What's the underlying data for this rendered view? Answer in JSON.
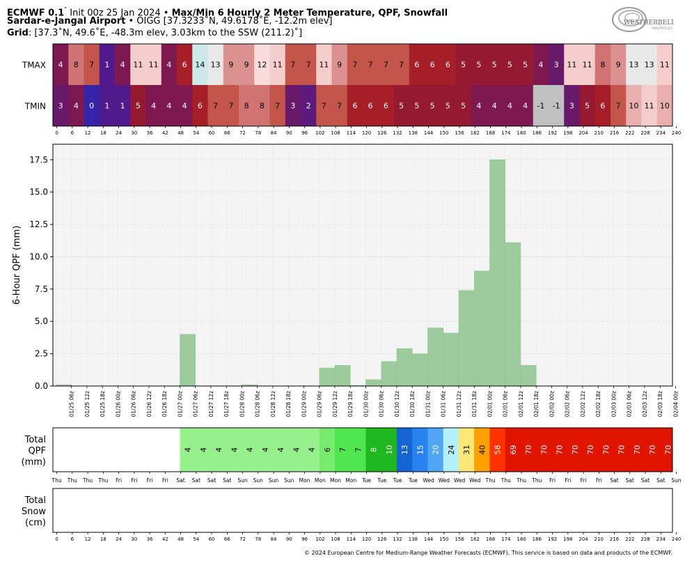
{
  "header": {
    "line1_model": "ECMWF 0.1",
    "line1_init": "Init 00z 25 Jan 2024",
    "line1_title": "Max/Min 6 Hourly 2 Meter Temperature,  QPF,  Snowfall",
    "line2_station": "Sardar-e-Jangal Airport",
    "line2_detail": "OIGG [37.3233˚N, 49.6178˚E, -12.2m elev]",
    "line3_label": "Grid",
    "line3_detail": ": [37.3˚N, 49.6˚E, -48.3m elev, 3.03km to the SSW (211.2)˚]"
  },
  "logo": {
    "text": "WEATHERBELL",
    "sub": "ANALYTICS LLC"
  },
  "temp_panel": {
    "row_labels": [
      "TMAX",
      "TMIN"
    ],
    "tmax": [
      4,
      8,
      7,
      1,
      4,
      11,
      11,
      4,
      6,
      14,
      13,
      9,
      9,
      12,
      11,
      7,
      7,
      11,
      9,
      7,
      7,
      7,
      7,
      6,
      6,
      6,
      5,
      5,
      5,
      5,
      5,
      4,
      3,
      11,
      11,
      8,
      9,
      13,
      13,
      11
    ],
    "tmin": [
      3,
      4,
      0,
      1,
      1,
      5,
      4,
      4,
      4,
      6,
      7,
      7,
      8,
      8,
      7,
      3,
      2,
      7,
      7,
      6,
      6,
      6,
      5,
      5,
      5,
      5,
      5,
      4,
      4,
      4,
      4,
      -1,
      -1,
      3,
      5,
      6,
      7,
      10,
      11,
      10
    ],
    "hours": [
      "0",
      "6",
      "12",
      "18",
      "24",
      "30",
      "36",
      "42",
      "48",
      "54",
      "60",
      "66",
      "72",
      "78",
      "84",
      "90",
      "96",
      "102",
      "108",
      "114",
      "120",
      "126",
      "132",
      "138",
      "144",
      "150",
      "156",
      "162",
      "168",
      "174",
      "180",
      "186",
      "192",
      "198",
      "204",
      "210",
      "216",
      "222",
      "228",
      "234",
      "240"
    ]
  },
  "chart_data": {
    "type": "bar",
    "ylabel": "6-Hour QPF (mm)",
    "ylim": [
      0,
      18.7
    ],
    "yticks": [
      "0.0",
      "2.5",
      "5.0",
      "7.5",
      "10.0",
      "12.5",
      "15.0",
      "17.5"
    ],
    "grid": true,
    "bar_color": "#9ecb9e",
    "categories": [
      "01/25 06z",
      "01/25 12z",
      "01/25 18z",
      "01/26 00z",
      "01/26 06z",
      "01/26 12z",
      "01/26 18z",
      "01/27 00z",
      "01/27 06z",
      "01/27 12z",
      "01/27 18z",
      "01/28 00z",
      "01/28 06z",
      "01/28 12z",
      "01/28 18z",
      "01/29 00z",
      "01/29 06z",
      "01/29 12z",
      "01/29 18z",
      "01/30 00z",
      "01/30 06z",
      "01/30 12z",
      "01/30 18z",
      "01/31 00z",
      "01/31 06z",
      "01/31 12z",
      "01/31 18z",
      "02/01 00z",
      "02/01 06z",
      "02/01 12z",
      "02/01 18z",
      "02/02 00z",
      "02/02 06z",
      "02/02 12z",
      "02/02 18z",
      "02/03 00z",
      "02/03 06z",
      "02/03 12z",
      "02/03 18z",
      "02/04 00z"
    ],
    "values": [
      0.1,
      0,
      0,
      0,
      0,
      0,
      0,
      0,
      4.0,
      0,
      0,
      0,
      0.1,
      0,
      0,
      0,
      0,
      1.4,
      1.6,
      0.05,
      0.5,
      1.9,
      2.9,
      2.5,
      4.5,
      4.1,
      7.4,
      8.9,
      17.5,
      11.1,
      1.6,
      0,
      0,
      0,
      0,
      0,
      0,
      0,
      0,
      0
    ]
  },
  "total_qpf": {
    "label_lines": [
      "Total",
      "QPF",
      "(mm)"
    ],
    "values": [
      "",
      "",
      "",
      "",
      "",
      "",
      "",
      "",
      "4",
      "4",
      "4",
      "4",
      "4",
      "4",
      "4",
      "4",
      "4",
      "6",
      "7",
      "7",
      "8",
      "10",
      "13",
      "15",
      "20",
      "24",
      "31",
      "40",
      "58",
      "69",
      "70",
      "70",
      "70",
      "70",
      "70",
      "70",
      "70",
      "70",
      "70",
      "70"
    ],
    "colors": [
      "#ffffff",
      "#ffffff",
      "#ffffff",
      "#ffffff",
      "#ffffff",
      "#ffffff",
      "#ffffff",
      "#ffffff",
      "#96f08c",
      "#96f08c",
      "#96f08c",
      "#96f08c",
      "#96f08c",
      "#96f08c",
      "#96f08c",
      "#96f08c",
      "#96f08c",
      "#78ec6e",
      "#50e650",
      "#50e650",
      "#20b820",
      "#20b820",
      "#1464d2",
      "#2882f0",
      "#50a5f5",
      "#b4f0fa",
      "#ffe878",
      "#ffa000",
      "#ff3200",
      "#e11400",
      "#e11400",
      "#e11400",
      "#e11400",
      "#e11400",
      "#e11400",
      "#e11400",
      "#e11400",
      "#e11400",
      "#e11400",
      "#e11400"
    ],
    "days": [
      "Thu",
      "Thu",
      "Thu",
      "Thu",
      "Fri",
      "Fri",
      "Fri",
      "Fri",
      "Sat",
      "Sat",
      "Sat",
      "Sat",
      "Sun",
      "Sun",
      "Sun",
      "Sun",
      "Mon",
      "Mon",
      "Mon",
      "Mon",
      "Tue",
      "Tue",
      "Tue",
      "Tue",
      "Wed",
      "Wed",
      "Wed",
      "Wed",
      "Thu",
      "Thu",
      "Thu",
      "Thu",
      "Fri",
      "Fri",
      "Fri",
      "Fri",
      "Sat",
      "Sat",
      "Sat",
      "Sat",
      "Sun"
    ]
  },
  "total_snow": {
    "label_lines": [
      "Total",
      "Snow",
      "(cm)"
    ],
    "hours": [
      "0",
      "6",
      "12",
      "18",
      "24",
      "30",
      "36",
      "42",
      "48",
      "54",
      "60",
      "66",
      "72",
      "78",
      "84",
      "90",
      "96",
      "102",
      "108",
      "114",
      "120",
      "126",
      "132",
      "138",
      "144",
      "150",
      "156",
      "162",
      "168",
      "174",
      "180",
      "186",
      "192",
      "198",
      "204",
      "210",
      "216",
      "222",
      "228",
      "234",
      "240"
    ]
  },
  "footer": {
    "copyright": "© 2024 European Centre for Medium-Range Weather Forecasts (ECMWF). This service is based on data and products of the ECMWF."
  }
}
